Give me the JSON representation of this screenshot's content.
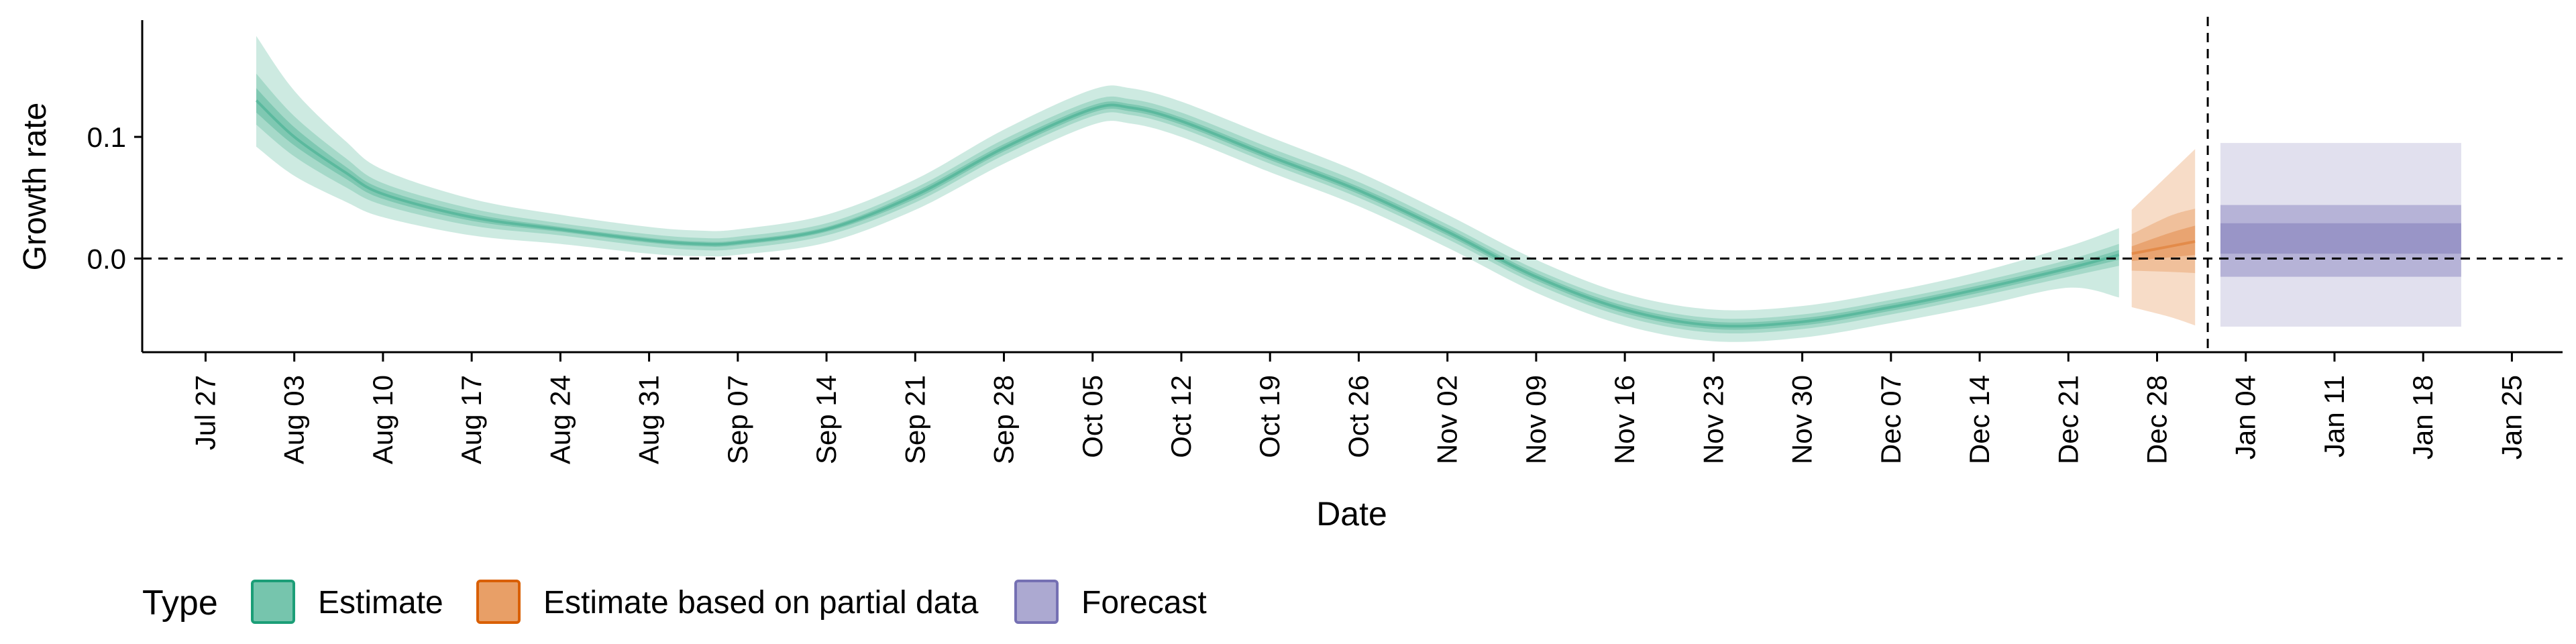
{
  "chart_data": {
    "type": "area",
    "xlabel": "Date",
    "ylabel": "Growth rate",
    "x_ticks": [
      "Jul 27",
      "Aug 03",
      "Aug 10",
      "Aug 17",
      "Aug 24",
      "Aug 31",
      "Sep 07",
      "Sep 14",
      "Sep 21",
      "Sep 28",
      "Oct 05",
      "Oct 12",
      "Oct 19",
      "Oct 26",
      "Nov 02",
      "Nov 09",
      "Nov 16",
      "Nov 23",
      "Nov 30",
      "Dec 07",
      "Dec 14",
      "Dec 21",
      "Dec 28",
      "Jan 04",
      "Jan 11",
      "Jan 18",
      "Jan 25"
    ],
    "y_ticks": [
      "0.0",
      "0.1"
    ],
    "ylim": [
      -0.077,
      0.196
    ],
    "xlim": [
      "2020-07-22",
      "2021-01-29"
    ],
    "grid": false,
    "reference_lines": {
      "horizontal_y": 0.0,
      "vertical_x": "2021-01-01"
    },
    "legend": {
      "position": "bottom-left",
      "title": "Type",
      "entries": [
        {
          "label": "Estimate",
          "color": "#1b9e77"
        },
        {
          "label": "Estimate based on partial data",
          "color": "#d95f02"
        },
        {
          "label": "Forecast",
          "color": "#7570b3"
        }
      ]
    },
    "series": [
      {
        "name": "Estimate",
        "color": "#1b9e77",
        "points": [
          {
            "x": "2020-07-31",
            "median": 0.13,
            "lower_20": 0.12,
            "upper_20": 0.14,
            "lower_50": 0.11,
            "upper_50": 0.152,
            "lower_90": 0.092,
            "upper_90": 0.183
          },
          {
            "x": "2020-08-03",
            "median": 0.1,
            "lower_20": 0.093,
            "upper_20": 0.108,
            "lower_50": 0.084,
            "upper_50": 0.117,
            "lower_90": 0.068,
            "upper_90": 0.138
          },
          {
            "x": "2020-08-07",
            "median": 0.071,
            "lower_20": 0.066,
            "upper_20": 0.076,
            "lower_50": 0.059,
            "upper_50": 0.083,
            "lower_90": 0.047,
            "upper_90": 0.097
          },
          {
            "x": "2020-08-10",
            "median": 0.053,
            "lower_20": 0.049,
            "upper_20": 0.057,
            "lower_50": 0.044,
            "upper_50": 0.062,
            "lower_90": 0.034,
            "upper_90": 0.073
          },
          {
            "x": "2020-08-17",
            "median": 0.034,
            "lower_20": 0.031,
            "upper_20": 0.037,
            "lower_50": 0.027,
            "upper_50": 0.041,
            "lower_90": 0.019,
            "upper_90": 0.049
          },
          {
            "x": "2020-08-24",
            "median": 0.024,
            "lower_20": 0.022,
            "upper_20": 0.026,
            "lower_50": 0.019,
            "upper_50": 0.029,
            "lower_90": 0.012,
            "upper_90": 0.036
          },
          {
            "x": "2020-08-31",
            "median": 0.015,
            "lower_20": 0.013,
            "upper_20": 0.017,
            "lower_50": 0.01,
            "upper_50": 0.02,
            "lower_90": 0.004,
            "upper_90": 0.026
          },
          {
            "x": "2020-09-04",
            "median": 0.012,
            "lower_20": 0.01,
            "upper_20": 0.014,
            "lower_50": 0.007,
            "upper_50": 0.017,
            "lower_90": 0.002,
            "upper_90": 0.023
          },
          {
            "x": "2020-09-07",
            "median": 0.013,
            "lower_20": 0.011,
            "upper_20": 0.015,
            "lower_50": 0.008,
            "upper_50": 0.018,
            "lower_90": 0.003,
            "upper_90": 0.024
          },
          {
            "x": "2020-09-14",
            "median": 0.024,
            "lower_20": 0.022,
            "upper_20": 0.026,
            "lower_50": 0.019,
            "upper_50": 0.029,
            "lower_90": 0.013,
            "upper_90": 0.036
          },
          {
            "x": "2020-09-21",
            "median": 0.052,
            "lower_20": 0.049,
            "upper_20": 0.055,
            "lower_50": 0.046,
            "upper_50": 0.058,
            "lower_90": 0.04,
            "upper_90": 0.065
          },
          {
            "x": "2020-09-28",
            "median": 0.091,
            "lower_20": 0.088,
            "upper_20": 0.094,
            "lower_50": 0.085,
            "upper_50": 0.098,
            "lower_90": 0.078,
            "upper_90": 0.106
          },
          {
            "x": "2020-10-05",
            "median": 0.123,
            "lower_20": 0.12,
            "upper_20": 0.126,
            "lower_50": 0.117,
            "upper_50": 0.13,
            "lower_90": 0.11,
            "upper_90": 0.139
          },
          {
            "x": "2020-10-08",
            "median": 0.124,
            "lower_20": 0.121,
            "upper_20": 0.127,
            "lower_50": 0.118,
            "upper_50": 0.131,
            "lower_90": 0.111,
            "upper_90": 0.14
          },
          {
            "x": "2020-10-12",
            "median": 0.113,
            "lower_20": 0.11,
            "upper_20": 0.116,
            "lower_50": 0.107,
            "upper_50": 0.12,
            "lower_90": 0.1,
            "upper_90": 0.129
          },
          {
            "x": "2020-10-19",
            "median": 0.084,
            "lower_20": 0.081,
            "upper_20": 0.087,
            "lower_50": 0.078,
            "upper_50": 0.091,
            "lower_90": 0.071,
            "upper_90": 0.1
          },
          {
            "x": "2020-10-26",
            "median": 0.056,
            "lower_20": 0.053,
            "upper_20": 0.059,
            "lower_50": 0.05,
            "upper_50": 0.063,
            "lower_90": 0.043,
            "upper_90": 0.071
          },
          {
            "x": "2020-11-02",
            "median": 0.022,
            "lower_20": 0.019,
            "upper_20": 0.025,
            "lower_50": 0.016,
            "upper_50": 0.028,
            "lower_90": 0.009,
            "upper_90": 0.036
          },
          {
            "x": "2020-11-09",
            "median": -0.015,
            "lower_20": -0.018,
            "upper_20": -0.012,
            "lower_50": -0.021,
            "upper_50": -0.009,
            "lower_90": -0.028,
            "upper_90": -0.001
          },
          {
            "x": "2020-11-16",
            "median": -0.042,
            "lower_20": -0.045,
            "upper_20": -0.039,
            "lower_50": -0.048,
            "upper_50": -0.036,
            "lower_90": -0.055,
            "upper_90": -0.029
          },
          {
            "x": "2020-11-23",
            "median": -0.055,
            "lower_20": -0.058,
            "upper_20": -0.052,
            "lower_50": -0.061,
            "upper_50": -0.049,
            "lower_90": -0.068,
            "upper_90": -0.042
          },
          {
            "x": "2020-11-30",
            "median": -0.052,
            "lower_20": -0.055,
            "upper_20": -0.049,
            "lower_50": -0.058,
            "upper_50": -0.046,
            "lower_90": -0.065,
            "upper_90": -0.039
          },
          {
            "x": "2020-12-07",
            "median": -0.04,
            "lower_20": -0.043,
            "upper_20": -0.037,
            "lower_50": -0.046,
            "upper_50": -0.034,
            "lower_90": -0.053,
            "upper_90": -0.027
          },
          {
            "x": "2020-12-14",
            "median": -0.025,
            "lower_20": -0.028,
            "upper_20": -0.022,
            "lower_50": -0.031,
            "upper_50": -0.019,
            "lower_90": -0.039,
            "upper_90": -0.011
          },
          {
            "x": "2020-12-21",
            "median": -0.008,
            "lower_20": -0.011,
            "upper_20": -0.005,
            "lower_50": -0.015,
            "upper_50": -0.001,
            "lower_90": -0.024,
            "upper_90": 0.01
          },
          {
            "x": "2020-12-25",
            "median": 0.003,
            "lower_20": -0.001,
            "upper_20": 0.007,
            "lower_50": -0.006,
            "upper_50": 0.012,
            "lower_90": -0.032,
            "upper_90": 0.025
          }
        ]
      },
      {
        "name": "Estimate based on partial data",
        "color": "#d95f02",
        "points": [
          {
            "x": "2020-12-26",
            "median": 0.004,
            "lower_20": -0.002,
            "upper_20": 0.01,
            "lower_50": -0.01,
            "upper_50": 0.02,
            "lower_90": -0.04,
            "upper_90": 0.04
          },
          {
            "x": "2020-12-29",
            "median": 0.01,
            "lower_20": 0.001,
            "upper_20": 0.021,
            "lower_50": -0.011,
            "upper_50": 0.035,
            "lower_90": -0.048,
            "upper_90": 0.07
          },
          {
            "x": "2020-12-31",
            "median": 0.014,
            "lower_20": 0.003,
            "upper_20": 0.027,
            "lower_50": -0.012,
            "upper_50": 0.041,
            "lower_90": -0.055,
            "upper_90": 0.09
          }
        ]
      },
      {
        "name": "Forecast",
        "color": "#7570b3",
        "x_range": [
          "2021-01-02",
          "2021-01-21"
        ],
        "median": 0.015,
        "lower_20": 0.004,
        "upper_20": 0.029,
        "lower_50": -0.015,
        "upper_50": 0.044,
        "lower_90": -0.056,
        "upper_90": 0.095
      }
    ]
  }
}
